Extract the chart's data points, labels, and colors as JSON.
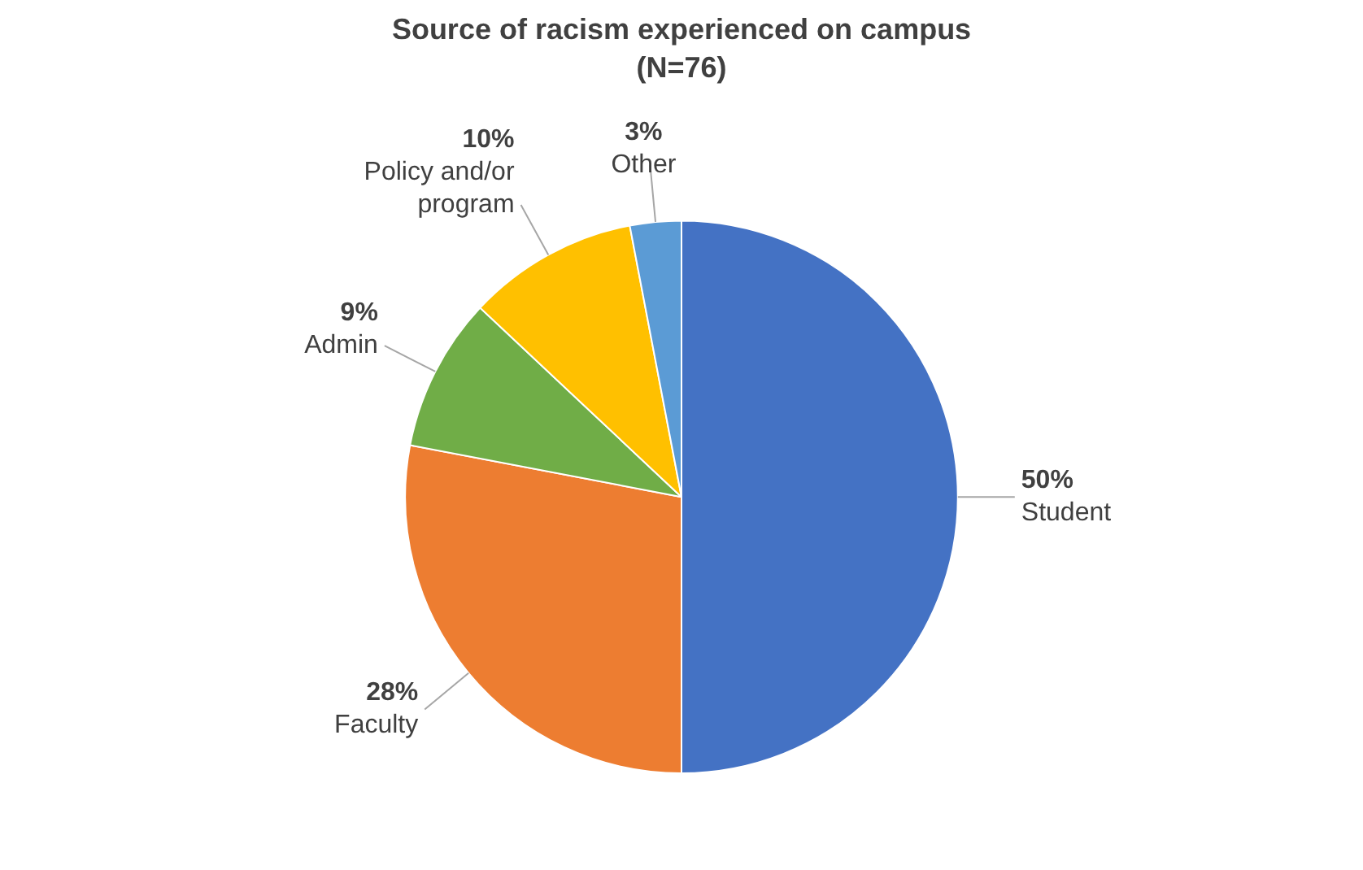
{
  "chart_data": {
    "type": "pie",
    "title": "Source of racism experienced on campus",
    "subtitle": "(N=76)",
    "categories": [
      "Student",
      "Faculty",
      "Admin",
      "Policy and/or program",
      "Other"
    ],
    "values": [
      50,
      28,
      9,
      10,
      3
    ],
    "value_labels": [
      "50%",
      "28%",
      "9%",
      "10%",
      "3%"
    ],
    "colors": [
      "#4472c4",
      "#ed7d31",
      "#70ad47",
      "#ffc000",
      "#5b9bd5"
    ],
    "legend": false
  }
}
